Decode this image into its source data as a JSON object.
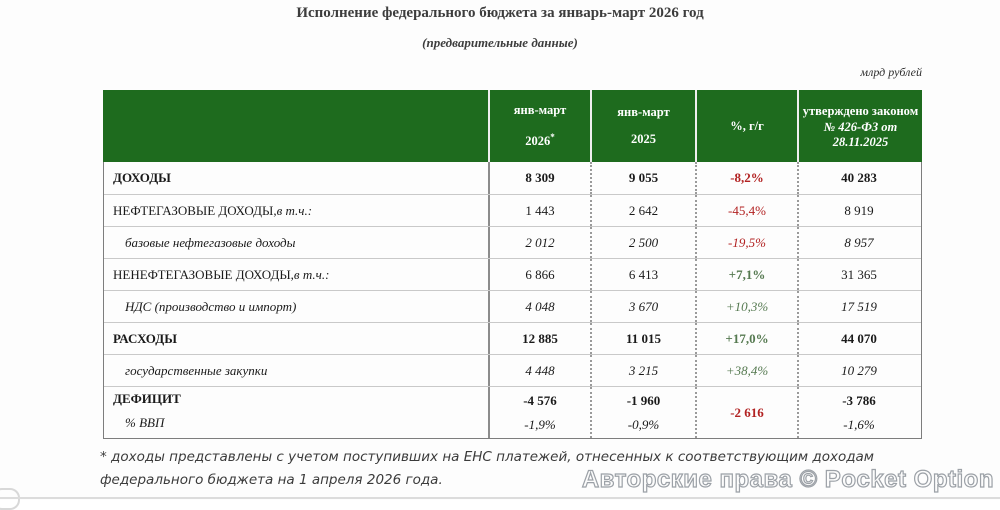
{
  "page": {
    "title": "Исполнение федерального бюджета за январь-март 2026 год",
    "subtitle": "(предварительные данные)",
    "units_note": "млрд рублей",
    "footnote": "* доходы представлены с учетом поступивших на ЕНС платежей, отнесенных к соответствующим доходам федерального бюджета на 1 апреля 2026 года.",
    "watermark": "Авторские права © Pocket Option"
  },
  "colors": {
    "header_green": "#1e6b1e",
    "negative_red": "#b22222",
    "positive_green": "#567a51",
    "header_text": "#ffffff"
  },
  "table": {
    "header": {
      "col_label": "",
      "col_2026_line1": "янв-март",
      "col_2026_year": "2026",
      "col_2026_footnote_mark": "*",
      "col_2025_line1": "янв-март",
      "col_2025_year": "2025",
      "col_pct": "%, г/г",
      "col_law_line1": "утверждено законом",
      "col_law_line2": "№ 426-ФЗ от",
      "col_law_line3": "28.11.2025"
    },
    "rows": [
      {
        "label": "ДОХОДЫ",
        "v2026": "8 309",
        "v2025": "9 055",
        "pct": "-8,2%",
        "law": "40 283"
      },
      {
        "label": "НЕФТЕГАЗОВЫЕ ДОХОДЫ,",
        "label_italic": " в т.ч.:",
        "v2026": "1 443",
        "v2025": "2 642",
        "pct": "-45,4%",
        "law": "8 919"
      },
      {
        "label": "базовые нефтегазовые доходы",
        "v2026": "2 012",
        "v2025": "2 500",
        "pct": "-19,5%",
        "law": "8 957"
      },
      {
        "label": "НЕНЕФТЕГАЗОВЫЕ ДОХОДЫ,",
        "label_italic": " в т.ч.:",
        "v2026": "6 866",
        "v2025": "6 413",
        "pct": "+7,1%",
        "law": "31 365"
      },
      {
        "label": "НДС (производство и импорт)",
        "v2026": "4 048",
        "v2025": "3 670",
        "pct": "+10,3%",
        "law": "17 519"
      },
      {
        "label": "РАСХОДЫ",
        "v2026": "12 885",
        "v2025": "11 015",
        "pct": "+17,0%",
        "law": "44 070"
      },
      {
        "label": "государственные закупки",
        "v2026": "4 448",
        "v2025": "3 215",
        "pct": "+38,4%",
        "law": "10 279"
      },
      {
        "label": "ДЕФИЦИТ",
        "v2026": "-4 576",
        "v2025": "-1 960",
        "pct": "-2 616",
        "law": "-3 786"
      },
      {
        "label": "% ВВП",
        "v2026": "-1,9%",
        "v2025": "-0,9%",
        "pct": "",
        "law": "-1,6%"
      }
    ]
  },
  "chart_data": {
    "type": "table",
    "title": "Исполнение федерального бюджета за январь-март 2026 год (предварительные данные)",
    "units": "млрд рублей",
    "columns": [
      "",
      "янв-март 2026*",
      "янв-март 2025",
      "%, г/г",
      "утверждено законом № 426-ФЗ от 28.11.2025"
    ],
    "rows": [
      [
        "ДОХОДЫ",
        "8 309",
        "9 055",
        "-8,2%",
        "40 283"
      ],
      [
        "НЕФТЕГАЗОВЫЕ ДОХОДЫ, в т.ч.:",
        "1 443",
        "2 642",
        "-45,4%",
        "8 919"
      ],
      [
        "базовые нефтегазовые доходы",
        "2 012",
        "2 500",
        "-19,5%",
        "8 957"
      ],
      [
        "НЕНЕФТЕГАЗОВЫЕ ДОХОДЫ, в т.ч.:",
        "6 866",
        "6 413",
        "+7,1%",
        "31 365"
      ],
      [
        "НДС (производство и импорт)",
        "4 048",
        "3 670",
        "+10,3%",
        "17 519"
      ],
      [
        "РАСХОДЫ",
        "12 885",
        "11 015",
        "+17,0%",
        "44 070"
      ],
      [
        "государственные закупки",
        "4 448",
        "3 215",
        "+38,4%",
        "10 279"
      ],
      [
        "ДЕФИЦИТ",
        "-4 576",
        "-1 960",
        "-2 616",
        "-3 786"
      ],
      [
        "% ВВП",
        "-1,9%",
        "-0,9%",
        "",
        "-1,6%"
      ]
    ]
  }
}
